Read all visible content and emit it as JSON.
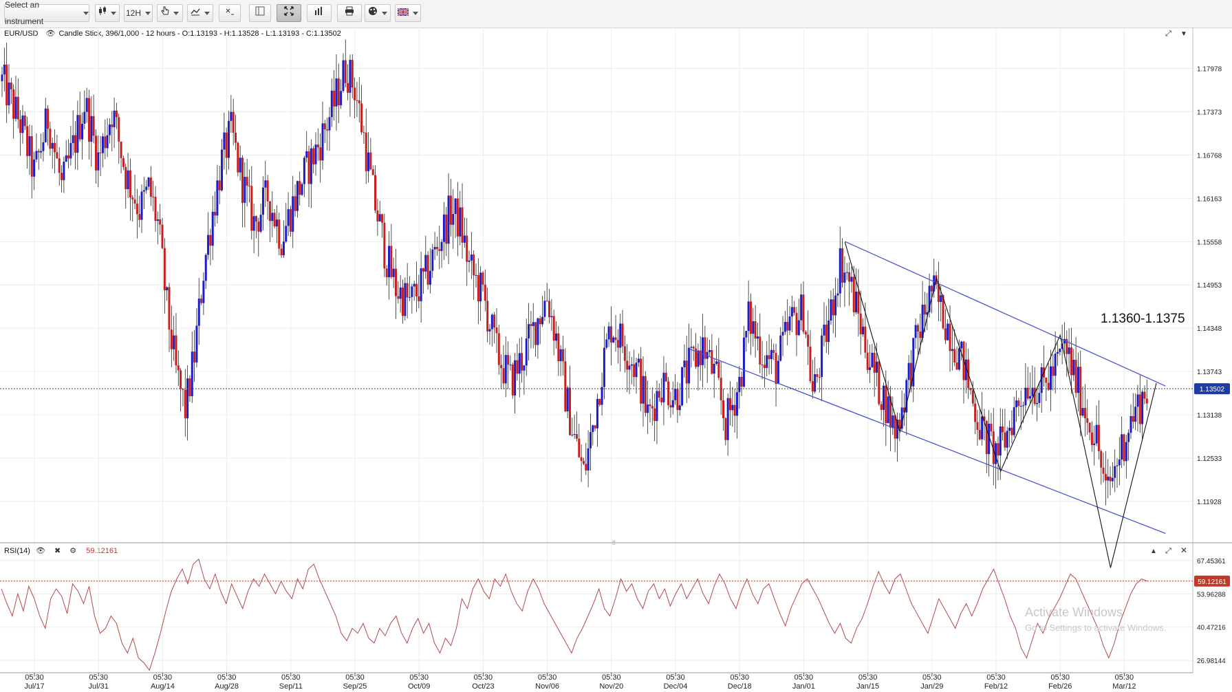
{
  "toolbar": {
    "instrument_placeholder": "Select an instrument",
    "timeframe": "12H",
    "buttons": [
      {
        "name": "chart-type-button",
        "icon": "candlestick-icon",
        "dropdown": true
      },
      {
        "name": "timeframe-button",
        "dropdown": true
      },
      {
        "name": "drawing-tools-button",
        "icon": "hand-pointer-icon",
        "dropdown": true
      },
      {
        "name": "draw-line-button",
        "icon": "line-tool-icon",
        "dropdown": true
      },
      {
        "name": "crosshair-button",
        "icon": "crosshair-icon",
        "dropdown": false
      },
      {
        "name": "layout-button",
        "icon": "layout-icon",
        "dropdown": false
      },
      {
        "name": "fit-button",
        "icon": "fit-expand-icon",
        "dropdown": false,
        "active": true
      },
      {
        "name": "indicators-button",
        "icon": "bar-chart-icon",
        "dropdown": false
      },
      {
        "name": "print-button",
        "icon": "printer-icon",
        "dropdown": false
      },
      {
        "name": "color-theme-button",
        "icon": "palette-icon",
        "dropdown": true
      },
      {
        "name": "language-button",
        "icon": "uk-flag-icon",
        "dropdown": true
      }
    ]
  },
  "main_info": {
    "symbol": "EUR/USD",
    "description": "Candle Stick, 396/1,000 - 12 hours - O:1.13193 - H:1.13528 - L:1.13193 - C:1.13502"
  },
  "annotation": "1.1360-1.1375",
  "rsi_info": {
    "label": "RSI(14)",
    "value": "59.12161"
  },
  "watermark": {
    "line1": "Activate Windows",
    "line2": "Go to Settings to activate Windows."
  },
  "colors": {
    "up": "#1c1cc8",
    "down": "#c81e1e",
    "channel": "#4b55d2",
    "rsi": "#b44848",
    "current_tag": "#1f3ca6",
    "rsi_tag": "#c0392b"
  },
  "chart_data": [
    {
      "type": "candlestick",
      "title": "EUR/USD",
      "timeframe": "12 hours",
      "ohlc_last": {
        "open": 1.13193,
        "high": 1.13528,
        "low": 1.13193,
        "close": 1.13502
      },
      "y_ticks": [
        "1.17978",
        "1.17373",
        "1.16768",
        "1.16163",
        "1.15558",
        "1.14953",
        "1.14348",
        "1.13743",
        "1.13138",
        "1.12533",
        "1.11928"
      ],
      "y_range": [
        1.1135,
        1.1855
      ],
      "current_price": "1.13502",
      "x_ticks": [
        {
          "time": "05:30",
          "date": "Jul/17"
        },
        {
          "time": "05:30",
          "date": "Jul/31"
        },
        {
          "time": "05:30",
          "date": "Aug/14"
        },
        {
          "time": "05:30",
          "date": "Aug/28"
        },
        {
          "time": "05:30",
          "date": "Sep/11"
        },
        {
          "time": "05:30",
          "date": "Sep/25"
        },
        {
          "time": "05:30",
          "date": "Oct/09"
        },
        {
          "time": "05:30",
          "date": "Oct/23"
        },
        {
          "time": "05:30",
          "date": "Nov/06"
        },
        {
          "time": "05:30",
          "date": "Nov/20"
        },
        {
          "time": "05:30",
          "date": "Dec/04"
        },
        {
          "time": "05:30",
          "date": "Dec/18"
        },
        {
          "time": "05:30",
          "date": "Jan/01"
        },
        {
          "time": "05:30",
          "date": "Jan/15"
        },
        {
          "time": "05:30",
          "date": "Jan/29"
        },
        {
          "time": "05:30",
          "date": "Feb/12"
        },
        {
          "time": "05:30",
          "date": "Feb/26"
        },
        {
          "time": "05:30",
          "date": "Mar/12"
        }
      ],
      "close_path": [
        [
          "Jul/10",
          1.178
        ],
        [
          "Jul/14",
          1.172
        ],
        [
          "Jul/17",
          1.165
        ],
        [
          "Jul/20",
          1.173
        ],
        [
          "Jul/23",
          1.163
        ],
        [
          "Jul/26",
          1.17
        ],
        [
          "Jul/28",
          1.175
        ],
        [
          "Jul/31",
          1.167
        ],
        [
          "Aug/03",
          1.174
        ],
        [
          "Aug/06",
          1.165
        ],
        [
          "Aug/09",
          1.16
        ],
        [
          "Aug/11",
          1.163
        ],
        [
          "Aug/13",
          1.158
        ],
        [
          "Aug/15",
          1.146
        ],
        [
          "Aug/17",
          1.137
        ],
        [
          "Aug/19",
          1.132
        ],
        [
          "Aug/21",
          1.14
        ],
        [
          "Aug/23",
          1.152
        ],
        [
          "Aug/25",
          1.16
        ],
        [
          "Aug/27",
          1.167
        ],
        [
          "Aug/29",
          1.171
        ],
        [
          "Aug/31",
          1.165
        ],
        [
          "Sep/03",
          1.158
        ],
        [
          "Sep/06",
          1.162
        ],
        [
          "Sep/09",
          1.156
        ],
        [
          "Sep/11",
          1.16
        ],
        [
          "Sep/14",
          1.165
        ],
        [
          "Sep/17",
          1.169
        ],
        [
          "Sep/20",
          1.174
        ],
        [
          "Sep/23",
          1.18
        ],
        [
          "Sep/25",
          1.177
        ],
        [
          "Sep/27",
          1.17
        ],
        [
          "Sep/29",
          1.162
        ],
        [
          "Oct/02",
          1.153
        ],
        [
          "Oct/04",
          1.149
        ],
        [
          "Oct/07",
          1.147
        ],
        [
          "Oct/10",
          1.15
        ],
        [
          "Oct/13",
          1.155
        ],
        [
          "Oct/16",
          1.16
        ],
        [
          "Oct/18",
          1.158
        ],
        [
          "Oct/20",
          1.152
        ],
        [
          "Oct/23",
          1.148
        ],
        [
          "Oct/26",
          1.14
        ],
        [
          "Oct/29",
          1.136
        ],
        [
          "Nov/01",
          1.14
        ],
        [
          "Nov/04",
          1.145
        ],
        [
          "Nov/06",
          1.148
        ],
        [
          "Nov/08",
          1.142
        ],
        [
          "Nov/10",
          1.134
        ],
        [
          "Nov/12",
          1.128
        ],
        [
          "Nov/14",
          1.123
        ],
        [
          "Nov/16",
          1.13
        ],
        [
          "Nov/18",
          1.138
        ],
        [
          "Nov/20",
          1.144
        ],
        [
          "Nov/23",
          1.141
        ],
        [
          "Nov/26",
          1.137
        ],
        [
          "Nov/28",
          1.131
        ],
        [
          "Dec/01",
          1.136
        ],
        [
          "Dec/04",
          1.134
        ],
        [
          "Dec/07",
          1.138
        ],
        [
          "Dec/10",
          1.141
        ],
        [
          "Dec/13",
          1.136
        ],
        [
          "Dec/15",
          1.13
        ],
        [
          "Dec/18",
          1.136
        ],
        [
          "Dec/20",
          1.145
        ],
        [
          "Dec/23",
          1.14
        ],
        [
          "Dec/26",
          1.138
        ],
        [
          "Dec/29",
          1.144
        ],
        [
          "Jan/01",
          1.146
        ],
        [
          "Jan/03",
          1.134
        ],
        [
          "Jan/05",
          1.14
        ],
        [
          "Jan/07",
          1.146
        ],
        [
          "Jan/09",
          1.153
        ],
        [
          "Jan/11",
          1.15
        ],
        [
          "Jan/13",
          1.145
        ],
        [
          "Jan/15",
          1.14
        ],
        [
          "Jan/17",
          1.136
        ],
        [
          "Jan/19",
          1.133
        ],
        [
          "Jan/21",
          1.129
        ],
        [
          "Jan/23",
          1.134
        ],
        [
          "Jan/25",
          1.14
        ],
        [
          "Jan/27",
          1.145
        ],
        [
          "Jan/29",
          1.149
        ],
        [
          "Jan/31",
          1.146
        ],
        [
          "Feb/02",
          1.143
        ],
        [
          "Feb/05",
          1.138
        ],
        [
          "Feb/07",
          1.133
        ],
        [
          "Feb/09",
          1.129
        ],
        [
          "Feb/12",
          1.126
        ],
        [
          "Feb/14",
          1.128
        ],
        [
          "Feb/16",
          1.132
        ],
        [
          "Feb/19",
          1.136
        ],
        [
          "Feb/22",
          1.135
        ],
        [
          "Feb/25",
          1.138
        ],
        [
          "Feb/27",
          1.141
        ],
        [
          "Mar/01",
          1.137
        ],
        [
          "Mar/04",
          1.131
        ],
        [
          "Mar/06",
          1.128
        ],
        [
          "Mar/08",
          1.12
        ],
        [
          "Mar/10",
          1.124
        ],
        [
          "Mar/13",
          1.13
        ],
        [
          "Mar/15",
          1.1325
        ],
        [
          "Mar/17",
          1.135
        ]
      ],
      "channel_upper": [
        [
          "Jan/10",
          1.1556
        ],
        [
          "Mar/21",
          1.1354
        ]
      ],
      "channel_lower": [
        [
          "Dec/07",
          1.1406
        ],
        [
          "Mar/21",
          1.1148
        ]
      ],
      "zigzag": [
        [
          "Jan/10",
          1.1555
        ],
        [
          "Jan/22",
          1.129
        ],
        [
          "Jan/30",
          1.1505
        ],
        [
          "Feb/13",
          1.1235
        ],
        [
          "Feb/26",
          1.1425
        ],
        [
          "Mar/09",
          1.11
        ],
        [
          "Mar/19",
          1.1358
        ]
      ]
    },
    {
      "type": "line",
      "title": "RSI(14)",
      "y_ticks": [
        "67.45361",
        "53.96288",
        "40.47216",
        "26.98144"
      ],
      "y_range": [
        22.0,
        73.0
      ],
      "current_value": "59.12161",
      "values": [
        56,
        50,
        45,
        54,
        47,
        57,
        52,
        45,
        40,
        52,
        56,
        53,
        46,
        58,
        55,
        50,
        57,
        45,
        38,
        40,
        45,
        42,
        34,
        30,
        36,
        28,
        26,
        23,
        30,
        38,
        47,
        55,
        60,
        64,
        58,
        66,
        68,
        60,
        56,
        62,
        55,
        50,
        58,
        53,
        48,
        55,
        60,
        57,
        62,
        58,
        54,
        59,
        55,
        52,
        60,
        56,
        64,
        66,
        60,
        55,
        50,
        45,
        38,
        35,
        40,
        38,
        42,
        36,
        34,
        40,
        37,
        42,
        45,
        38,
        34,
        40,
        44,
        38,
        42,
        34,
        30,
        36,
        33,
        40,
        52,
        48,
        56,
        60,
        55,
        52,
        60,
        57,
        62,
        55,
        50,
        47,
        55,
        60,
        56,
        50,
        46,
        42,
        38,
        34,
        30,
        36,
        40,
        45,
        50,
        56,
        48,
        45,
        52,
        60,
        55,
        58,
        52,
        48,
        55,
        58,
        52,
        56,
        49,
        54,
        58,
        52,
        56,
        60,
        54,
        50,
        57,
        62,
        58,
        52,
        48,
        55,
        60,
        54,
        50,
        56,
        58,
        52,
        46,
        41,
        48,
        53,
        58,
        60,
        56,
        52,
        47,
        42,
        38,
        42,
        36,
        34,
        40,
        44,
        50,
        57,
        63,
        58,
        54,
        60,
        62,
        56,
        50,
        46,
        42,
        38,
        45,
        52,
        48,
        44,
        40,
        46,
        50,
        45,
        50,
        56,
        60,
        64,
        58,
        52,
        45,
        40,
        32,
        28,
        35,
        42,
        38,
        44,
        48,
        52,
        57,
        62,
        60,
        55,
        50,
        45,
        40,
        33,
        28,
        34,
        42,
        48,
        54,
        58,
        60,
        59.12
      ]
    }
  ]
}
